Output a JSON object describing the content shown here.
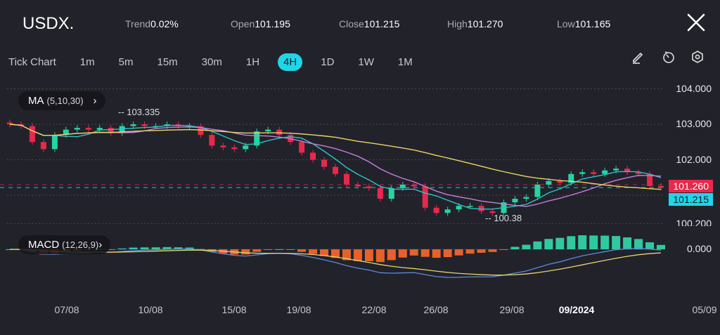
{
  "header": {
    "symbol": "USDX.",
    "trend_label": "Trend",
    "trend_value": "0.02%",
    "open_label": "Open",
    "open_value": "101.195",
    "close_label": "Close",
    "close_value": "101.215",
    "high_label": "High",
    "high_value": "101.270",
    "low_label": "Low",
    "low_value": "101.165",
    "close_icon": "close-x-icon"
  },
  "timeframes": [
    "Tick Chart",
    "1m",
    "5m",
    "15m",
    "30m",
    "1H",
    "4H",
    "1D",
    "1W",
    "1M"
  ],
  "active_timeframe": "4H",
  "tools": [
    "pencil-icon",
    "timer-icon",
    "settings-hexagon-icon"
  ],
  "indicators": {
    "ma_label": "MA",
    "ma_params": "(5,10,30)",
    "macd_label": "MACD",
    "macd_params": "(12,26,9)"
  },
  "chart_data": {
    "type": "candlestick",
    "y_ticks": [
      "104.000",
      "103.000",
      "102.000",
      "100.200"
    ],
    "macd_ticks": [
      "0.000"
    ],
    "x_ticks": [
      "07/08",
      "10/08",
      "15/08",
      "19/08",
      "22/08",
      "26/08",
      "29/08",
      "09/2024",
      "05/09"
    ],
    "ylim": [
      100.2,
      104.1
    ],
    "annotations": {
      "high": "103.335",
      "low": "100.38"
    },
    "last_price": "101.260",
    "current_close": "101.215",
    "closes": [
      103.0,
      102.95,
      102.5,
      102.3,
      102.7,
      102.85,
      102.9,
      102.85,
      102.9,
      102.75,
      102.95,
      103.0,
      102.95,
      102.95,
      103.0,
      102.95,
      102.95,
      102.7,
      102.4,
      102.35,
      102.3,
      102.4,
      102.8,
      102.85,
      102.7,
      102.5,
      102.2,
      102.0,
      101.8,
      101.6,
      101.3,
      101.25,
      101.2,
      100.9,
      101.2,
      101.3,
      101.25,
      100.65,
      100.5,
      100.6,
      100.7,
      100.7,
      100.55,
      100.5,
      100.8,
      100.9,
      100.95,
      101.3,
      101.4,
      101.35,
      101.6,
      101.65,
      101.6,
      101.7,
      101.75,
      101.65,
      101.6,
      101.26,
      101.215
    ],
    "colors": {
      "up": "#26d4a0",
      "down": "#e8294c",
      "ma5": "#2bc4c4",
      "ma10": "#c77ddb",
      "ma30": "#e8d46a",
      "dif": "#5b8bd9",
      "dea": "#e8d46a",
      "hist_up": "#2fc9a0",
      "hist_down": "#e8602c",
      "last_price_tag": "#e8294c",
      "close_tag": "#1fd6e8"
    }
  }
}
